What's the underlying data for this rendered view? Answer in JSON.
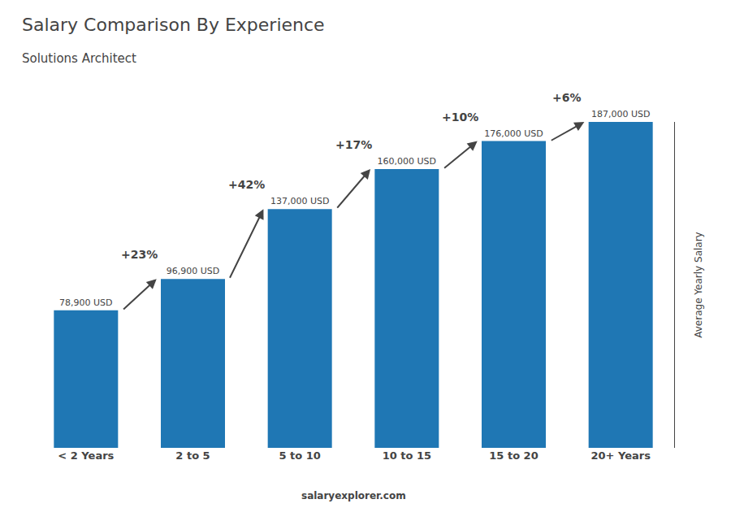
{
  "chart_data": {
    "type": "bar",
    "title": "Salary Comparison By Experience",
    "subtitle": "Solutions Architect",
    "ylabel": "Average Yearly Salary",
    "categories": [
      "< 2 Years",
      "2 to 5",
      "5 to 10",
      "10 to 15",
      "15 to 20",
      "20+ Years"
    ],
    "values": [
      78900,
      96900,
      137000,
      160000,
      176000,
      187000
    ],
    "value_labels": [
      "78,900 USD",
      "96,900 USD",
      "137,000 USD",
      "160,000 USD",
      "176,000 USD",
      "187,000 USD"
    ],
    "data_labels": true,
    "annotations": [
      "+23%",
      "+42%",
      "+17%",
      "+10%",
      "+6%"
    ],
    "footer": "salaryexplorer.com",
    "ylim": [
      0,
      187000
    ],
    "yticks": [],
    "tick_labels": "x",
    "grid": false
  }
}
